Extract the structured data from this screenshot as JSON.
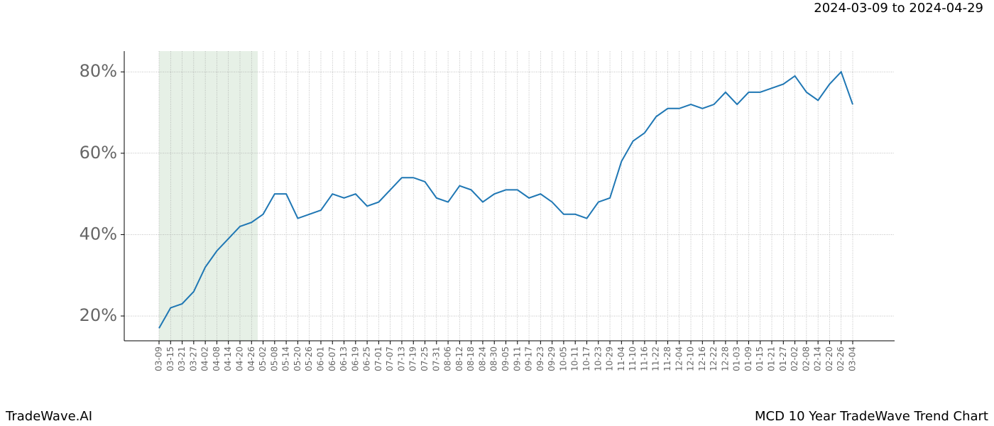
{
  "chart_data": {
    "type": "line",
    "title": "MCD 10 Year TradeWave Trend Chart",
    "subtitle": "2024-03-09 to 2024-04-29",
    "brand": "TradeWave.AI",
    "categories": [
      "03-09",
      "03-15",
      "03-21",
      "03-27",
      "04-02",
      "04-08",
      "04-14",
      "04-20",
      "04-26",
      "05-02",
      "05-08",
      "05-14",
      "05-20",
      "05-26",
      "06-01",
      "06-07",
      "06-13",
      "06-19",
      "06-25",
      "07-01",
      "07-07",
      "07-13",
      "07-19",
      "07-25",
      "07-31",
      "08-06",
      "08-12",
      "08-18",
      "08-24",
      "08-30",
      "09-05",
      "09-11",
      "09-17",
      "09-23",
      "09-29",
      "10-05",
      "10-11",
      "10-17",
      "10-23",
      "10-29",
      "11-04",
      "11-10",
      "11-16",
      "11-22",
      "11-28",
      "12-04",
      "12-10",
      "12-16",
      "12-22",
      "12-28",
      "01-03",
      "01-09",
      "01-15",
      "01-21",
      "01-27",
      "02-02",
      "02-08",
      "02-14",
      "02-20",
      "02-26",
      "03-04"
    ],
    "series": [
      {
        "name": "MCD",
        "color": "#1f77b4",
        "values": [
          17,
          22,
          23,
          26,
          32,
          36,
          39,
          42,
          43,
          45,
          50,
          50,
          44,
          45,
          46,
          50,
          49,
          50,
          47,
          48,
          51,
          54,
          54,
          53,
          49,
          48,
          52,
          51,
          48,
          50,
          51,
          51,
          49,
          50,
          48,
          45,
          45,
          44,
          48,
          49,
          58,
          63,
          65,
          69,
          71,
          71,
          72,
          71,
          72,
          75,
          72,
          75,
          75,
          76,
          77,
          79,
          75,
          73,
          77,
          80,
          72
        ]
      }
    ],
    "ylim": [
      13.9,
      85.1
    ],
    "yticks": [
      {
        "value": 20,
        "label": "20%"
      },
      {
        "value": 40,
        "label": "40%"
      },
      {
        "value": 60,
        "label": "60%"
      },
      {
        "value": 80,
        "label": "80%"
      }
    ],
    "grid": true
  }
}
